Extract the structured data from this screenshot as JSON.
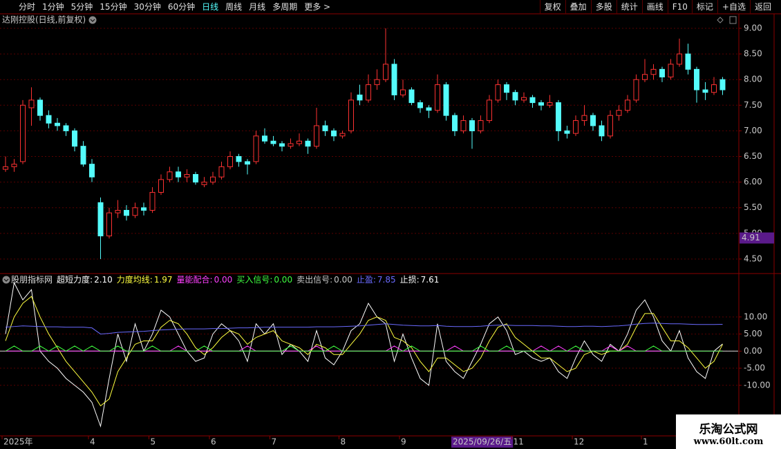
{
  "toolbar": {
    "left": [
      "分时",
      "1分钟",
      "5分钟",
      "15分钟",
      "30分钟",
      "60分钟",
      "日线",
      "周线",
      "月线",
      "多周期",
      "更多 >"
    ],
    "active_index": 6,
    "right": [
      "复权",
      "叠加",
      "多股",
      "统计",
      "画线",
      "F10",
      "标记",
      "+自选",
      "返回"
    ]
  },
  "watermark": {
    "title": "乐淘公式网",
    "url": "www.60lt.com"
  },
  "chart_data": [
    {
      "type": "candlestick",
      "title": "达刚控股(日线,前复权)",
      "up_color": "#ff3232",
      "down_color": "#54fcfc",
      "ylim": [
        4.23,
        9.04
      ],
      "yticks": [
        {
          "value": 4.5,
          "label": "4.50"
        },
        {
          "value": 5,
          "label": "5.00"
        },
        {
          "value": 5.5,
          "label": "5.50"
        },
        {
          "value": 6,
          "label": "6.00"
        },
        {
          "value": 6.5,
          "label": "6.50"
        },
        {
          "value": 7,
          "label": "7.00"
        },
        {
          "value": 7.5,
          "label": "7.50"
        },
        {
          "value": 8,
          "label": "8.00"
        },
        {
          "value": 8.5,
          "label": "8.50"
        },
        {
          "value": 9,
          "label": "9.00"
        }
      ],
      "cursor_price": {
        "value": 4.91,
        "label": "4.91"
      },
      "cursor_category": 52,
      "categories": [
        "2025年",
        null,
        null,
        null,
        null,
        null,
        null,
        null,
        null,
        null,
        "4",
        null,
        null,
        null,
        null,
        null,
        null,
        "5",
        null,
        null,
        null,
        null,
        null,
        null,
        "6",
        null,
        null,
        null,
        null,
        null,
        null,
        "7",
        null,
        null,
        null,
        null,
        null,
        null,
        null,
        "8",
        null,
        null,
        null,
        null,
        null,
        null,
        "9",
        null,
        null,
        null,
        null,
        null,
        "2025/09/26/五",
        null,
        null,
        null,
        null,
        null,
        null,
        "11",
        null,
        null,
        null,
        null,
        null,
        null,
        "12",
        null,
        null,
        null,
        null,
        null,
        null,
        null,
        "1",
        null,
        null,
        null,
        null,
        null,
        null,
        null,
        null,
        null
      ],
      "ohlc": [
        [
          6.25,
          6.5,
          6.2,
          6.3
        ],
        [
          6.3,
          6.45,
          6.2,
          6.35
        ],
        [
          6.4,
          7.6,
          6.35,
          7.5
        ],
        [
          7.45,
          7.85,
          7.1,
          7.6
        ],
        [
          7.6,
          7.65,
          7.2,
          7.3
        ],
        [
          7.3,
          7.4,
          7.05,
          7.15
        ],
        [
          7.15,
          7.25,
          7.0,
          7.1
        ],
        [
          7.1,
          7.15,
          6.9,
          7.0
        ],
        [
          7.0,
          7.05,
          6.6,
          6.7
        ],
        [
          6.7,
          6.8,
          6.3,
          6.35
        ],
        [
          6.35,
          6.45,
          6.0,
          6.1
        ],
        [
          5.6,
          5.7,
          4.5,
          4.95
        ],
        [
          4.95,
          5.5,
          4.9,
          5.4
        ],
        [
          5.4,
          5.65,
          5.3,
          5.45
        ],
        [
          5.45,
          5.55,
          5.25,
          5.35
        ],
        [
          5.35,
          5.6,
          5.3,
          5.5
        ],
        [
          5.5,
          5.6,
          5.35,
          5.45
        ],
        [
          5.45,
          5.9,
          5.4,
          5.8
        ],
        [
          5.8,
          6.15,
          5.75,
          6.05
        ],
        [
          6.05,
          6.3,
          6.0,
          6.2
        ],
        [
          6.2,
          6.3,
          6.0,
          6.1
        ],
        [
          6.1,
          6.25,
          6.0,
          6.15
        ],
        [
          6.15,
          6.2,
          5.95,
          6.0
        ],
        [
          5.95,
          6.1,
          5.9,
          6.0
        ],
        [
          6.0,
          6.2,
          5.95,
          6.1
        ],
        [
          6.1,
          6.4,
          6.05,
          6.3
        ],
        [
          6.3,
          6.6,
          6.25,
          6.5
        ],
        [
          6.5,
          6.55,
          6.3,
          6.4
        ],
        [
          6.4,
          6.45,
          6.15,
          6.35
        ],
        [
          6.4,
          7.0,
          6.35,
          6.9
        ],
        [
          6.9,
          7.05,
          6.75,
          6.8
        ],
        [
          6.8,
          6.9,
          6.7,
          6.75
        ],
        [
          6.75,
          6.8,
          6.6,
          6.7
        ],
        [
          6.7,
          6.85,
          6.65,
          6.75
        ],
        [
          6.75,
          6.95,
          6.7,
          6.8
        ],
        [
          6.8,
          6.85,
          6.55,
          6.7
        ],
        [
          6.7,
          7.45,
          6.65,
          7.1
        ],
        [
          7.1,
          7.2,
          6.9,
          7.0
        ],
        [
          7.0,
          7.05,
          6.8,
          6.9
        ],
        [
          6.9,
          7.0,
          6.85,
          6.95
        ],
        [
          7.0,
          7.75,
          6.95,
          7.6
        ],
        [
          7.7,
          7.9,
          7.5,
          7.6
        ],
        [
          7.6,
          8.1,
          7.55,
          7.9
        ],
        [
          7.9,
          8.2,
          7.8,
          8.0
        ],
        [
          8.0,
          9.0,
          7.95,
          8.3
        ],
        [
          8.3,
          8.4,
          7.6,
          7.7
        ],
        [
          7.7,
          8.0,
          7.65,
          7.8
        ],
        [
          7.8,
          7.85,
          7.5,
          7.55
        ],
        [
          7.55,
          7.6,
          7.35,
          7.45
        ],
        [
          7.45,
          7.5,
          7.25,
          7.4
        ],
        [
          7.4,
          8.1,
          7.35,
          7.9
        ],
        [
          7.9,
          7.95,
          7.2,
          7.3
        ],
        [
          7.3,
          7.35,
          6.9,
          7.0
        ],
        [
          7.0,
          7.3,
          6.95,
          7.2
        ],
        [
          7.2,
          7.25,
          6.65,
          7.0
        ],
        [
          7.0,
          7.3,
          6.95,
          7.2
        ],
        [
          7.2,
          7.7,
          7.15,
          7.6
        ],
        [
          7.6,
          8.0,
          7.55,
          7.9
        ],
        [
          7.9,
          7.95,
          7.6,
          7.75
        ],
        [
          7.75,
          7.8,
          7.5,
          7.6
        ],
        [
          7.6,
          7.75,
          7.55,
          7.65
        ],
        [
          7.65,
          7.7,
          7.45,
          7.55
        ],
        [
          7.55,
          7.6,
          7.4,
          7.5
        ],
        [
          7.5,
          7.7,
          7.45,
          7.55
        ],
        [
          7.55,
          7.6,
          6.8,
          7.0
        ],
        [
          7.0,
          7.1,
          6.85,
          6.95
        ],
        [
          6.95,
          7.3,
          6.9,
          7.2
        ],
        [
          7.2,
          7.5,
          7.1,
          7.3
        ],
        [
          7.3,
          7.35,
          7.0,
          7.1
        ],
        [
          7.1,
          7.2,
          6.8,
          6.9
        ],
        [
          6.9,
          7.4,
          6.85,
          7.3
        ],
        [
          7.3,
          7.5,
          7.2,
          7.4
        ],
        [
          7.4,
          7.7,
          7.35,
          7.6
        ],
        [
          7.6,
          8.1,
          7.55,
          8.0
        ],
        [
          8.0,
          8.4,
          7.95,
          8.1
        ],
        [
          8.1,
          8.3,
          8.0,
          8.2
        ],
        [
          8.2,
          8.25,
          7.95,
          8.05
        ],
        [
          8.05,
          8.4,
          8.0,
          8.3
        ],
        [
          8.3,
          8.8,
          8.25,
          8.5
        ],
        [
          8.5,
          8.7,
          8.1,
          8.2
        ],
        [
          8.2,
          8.25,
          7.55,
          7.8
        ],
        [
          7.8,
          7.95,
          7.6,
          7.75
        ],
        [
          7.75,
          8.05,
          7.7,
          7.9
        ],
        [
          8.0,
          8.05,
          7.7,
          7.8
        ]
      ]
    },
    {
      "type": "line",
      "title": "股朋指标网",
      "ylim": [
        -24.6,
        22.5
      ],
      "yticks": [
        {
          "value": -10,
          "label": "-10.00"
        },
        {
          "value": -5,
          "label": "-5.00"
        },
        {
          "value": 0,
          "label": "0.00"
        },
        {
          "value": 5,
          "label": "5.00"
        },
        {
          "value": 10,
          "label": "10.00"
        }
      ],
      "series": [
        {
          "name": "超短力度:",
          "color": "#ffffff",
          "current": {
            "value": 2.1,
            "label": "2.10"
          },
          "values": [
            5,
            20,
            15,
            18,
            0,
            -3,
            -5,
            -8,
            -10,
            -12,
            -15,
            -22,
            -8,
            5,
            -3,
            8,
            0,
            5,
            12,
            10,
            5,
            0,
            -3,
            -2,
            5,
            8,
            6,
            3,
            -3,
            8,
            5,
            8,
            -1,
            2,
            0,
            -3,
            6,
            -2,
            -4,
            0,
            6,
            8,
            14,
            10,
            8,
            -3,
            5,
            -2,
            -8,
            -10,
            8,
            -3,
            -6,
            -8,
            -3,
            2,
            8,
            10,
            6,
            -1,
            0,
            -2,
            -3,
            -2,
            -6,
            -8,
            -2,
            3,
            -1,
            -3,
            2,
            0,
            5,
            12,
            15,
            10,
            3,
            0,
            6,
            -2,
            -6,
            -8,
            0,
            2.1
          ]
        },
        {
          "name": "力度均线:",
          "color": "#ffff40",
          "current": {
            "value": 1.97,
            "label": "1.97"
          },
          "values": [
            3,
            10,
            14,
            16,
            10,
            5,
            1,
            -3,
            -6,
            -9,
            -12,
            -16,
            -14,
            -6,
            -2,
            2,
            3,
            3,
            7,
            9,
            8,
            5,
            1,
            -1,
            1,
            4,
            6,
            5,
            2,
            4,
            5,
            6,
            3,
            2,
            1,
            -1,
            2,
            1,
            -1,
            -1,
            2,
            5,
            9,
            10,
            9,
            4,
            3,
            1,
            -3,
            -6,
            -2,
            -2,
            -4,
            -6,
            -5,
            -2,
            3,
            7,
            8,
            4,
            2,
            0,
            -2,
            -2,
            -4,
            -6,
            -5,
            -1,
            0,
            -1,
            0,
            0,
            2,
            7,
            11,
            11,
            7,
            3,
            3,
            1,
            -2,
            -5,
            -3,
            1.97
          ]
        },
        {
          "name": "量能配合:",
          "color": "#ff40ff",
          "current": {
            "value": 0,
            "label": "0.00"
          },
          "values": [
            0,
            0,
            0,
            0,
            0,
            0,
            0,
            0,
            0,
            0,
            0,
            0,
            0,
            0,
            0,
            0,
            0,
            0,
            0,
            0,
            1.5,
            0,
            0,
            0,
            0,
            0,
            0,
            0,
            1.5,
            0,
            0,
            0,
            0,
            0,
            0,
            0,
            1.5,
            0,
            0,
            0,
            0,
            0,
            0,
            0,
            0,
            1.5,
            0,
            0,
            0,
            0,
            0,
            0,
            1.5,
            0,
            0,
            0,
            0,
            0,
            0,
            0,
            0,
            0,
            1.5,
            0,
            1.5,
            0,
            0,
            0,
            0,
            0,
            1.5,
            0,
            1.5,
            0,
            0,
            0,
            0,
            0,
            0,
            0,
            0,
            0,
            0,
            0
          ]
        },
        {
          "name": "买入信号:",
          "color": "#40ff40",
          "current": {
            "value": 0,
            "label": "0.00"
          },
          "values": [
            0,
            1.5,
            0,
            0,
            1.5,
            0,
            1.5,
            0,
            1.5,
            0,
            1.5,
            0,
            0,
            1.5,
            0,
            0,
            0,
            1.5,
            0,
            0,
            0,
            0,
            0,
            1.5,
            0,
            0,
            0,
            0,
            0,
            0,
            0,
            0,
            0,
            1.5,
            0,
            0,
            0,
            0,
            1.5,
            0,
            0,
            0,
            0,
            0,
            0,
            0,
            0,
            1.5,
            0,
            0,
            0,
            0,
            0,
            0,
            0,
            1.5,
            0,
            0,
            1.5,
            0,
            0,
            0,
            0,
            0,
            0,
            0,
            1.5,
            0,
            0,
            0,
            0,
            0,
            0,
            0,
            0,
            1.5,
            0,
            0,
            0,
            0,
            0,
            0,
            0,
            0
          ]
        },
        {
          "name": "卖出信号:",
          "color": "#c8c8c8",
          "current": {
            "value": 0,
            "label": "0.00"
          }
        },
        {
          "name": "止盈:",
          "color": "#6a6aff",
          "current": {
            "value": 7.85,
            "label": "7.85"
          },
          "values": [
            7,
            7.2,
            7.4,
            7.3,
            7.2,
            7.1,
            7.1,
            7,
            7,
            7,
            6.8,
            5,
            5.2,
            5.5,
            5.6,
            5.7,
            5.8,
            6,
            6.2,
            6.3,
            6.4,
            6.5,
            6.5,
            6.5,
            6.6,
            6.6,
            6.7,
            6.8,
            6.8,
            6.9,
            7,
            7,
            7,
            7,
            7,
            7,
            7.1,
            7.1,
            7.1,
            7.2,
            7.3,
            7.4,
            7.6,
            7.8,
            8,
            7.8,
            7.6,
            7.5,
            7.4,
            7.4,
            7.5,
            7.3,
            7.2,
            7.2,
            7.2,
            7.3,
            7.5,
            7.6,
            7.6,
            7.5,
            7.5,
            7.5,
            7.4,
            7.4,
            7.3,
            7.2,
            7.2,
            7.3,
            7.3,
            7.2,
            7.3,
            7.4,
            7.6,
            7.9,
            8.1,
            8.2,
            8.1,
            8,
            8,
            7.9,
            7.8,
            7.8,
            7.8,
            7.85
          ]
        },
        {
          "name": "止损:",
          "color": "#ffffff",
          "current": {
            "value": 7.61,
            "label": "7.61"
          }
        }
      ]
    }
  ]
}
